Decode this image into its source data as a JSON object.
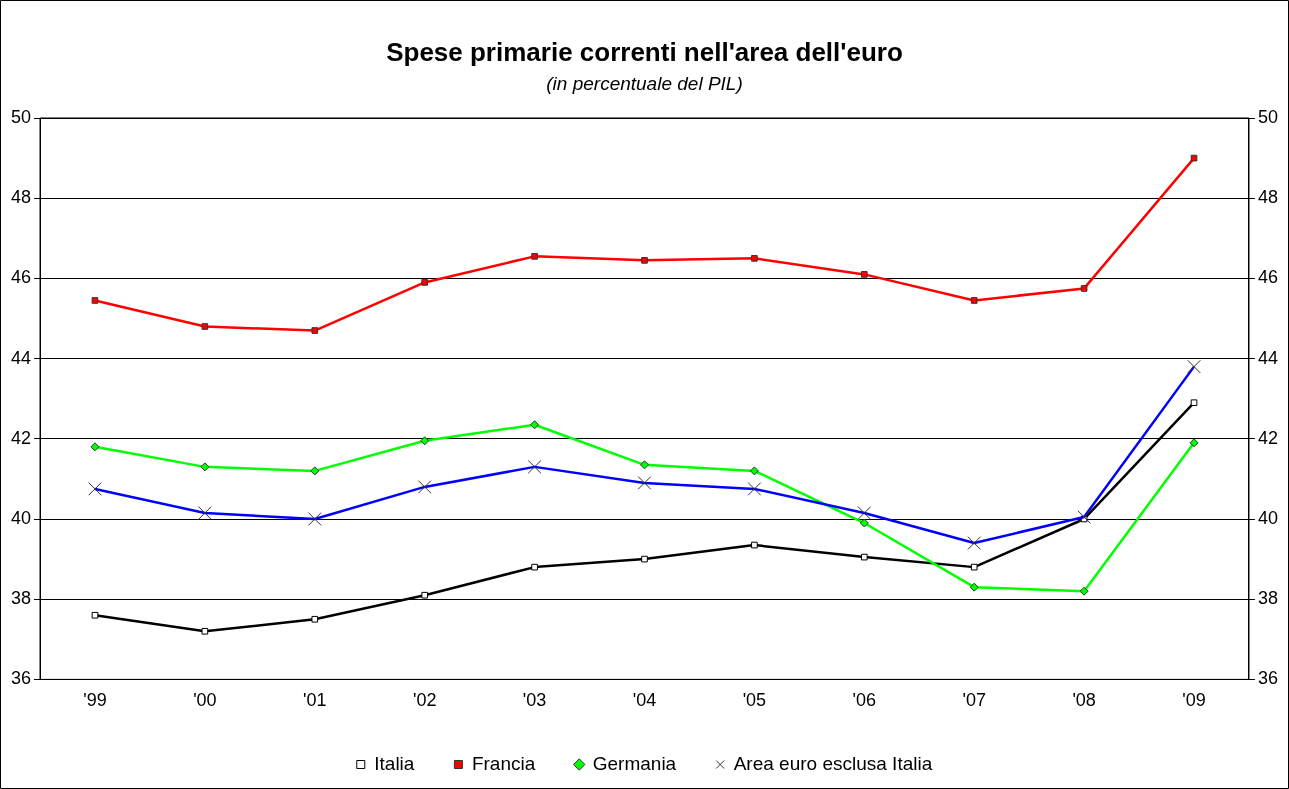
{
  "chart_data": {
    "type": "line",
    "title": "Spese primarie correnti nell'area dell'euro",
    "subtitle": "(in percentuale del PIL)",
    "categories": [
      "'99",
      "'00",
      "'01",
      "'02",
      "'03",
      "'04",
      "'05",
      "'06",
      "'07",
      "'08",
      "'09"
    ],
    "series": [
      {
        "name": "Italia",
        "color": "#000000",
        "marker": "square",
        "values": [
          37.6,
          37.2,
          37.5,
          38.1,
          38.8,
          39.0,
          39.35,
          39.05,
          38.8,
          40.0,
          42.9
        ]
      },
      {
        "name": "Francia",
        "color": "#ff0000",
        "marker": "square",
        "values": [
          45.45,
          44.8,
          44.7,
          45.9,
          46.55,
          46.45,
          46.5,
          46.1,
          45.45,
          45.75,
          49.0
        ]
      },
      {
        "name": "Germania",
        "color": "#00ff00",
        "marker": "diamond",
        "values": [
          41.8,
          41.3,
          41.2,
          41.95,
          42.35,
          41.35,
          41.2,
          39.9,
          38.3,
          38.2,
          41.9
        ]
      },
      {
        "name": "Area euro esclusa Italia",
        "color": "#0000ff",
        "marker": "cross",
        "values": [
          40.75,
          40.15,
          40.0,
          40.8,
          41.3,
          40.9,
          40.75,
          40.15,
          39.4,
          40.05,
          43.8
        ]
      }
    ],
    "ylim": [
      36,
      50
    ],
    "yticks": [
      36,
      38,
      40,
      42,
      44,
      46,
      48,
      50
    ],
    "y2lim": [
      36,
      50
    ],
    "y2ticks": [
      36,
      38,
      40,
      42,
      44,
      46,
      48,
      50
    ],
    "grid": "y",
    "legend": "bottom",
    "line_style": "solid"
  }
}
